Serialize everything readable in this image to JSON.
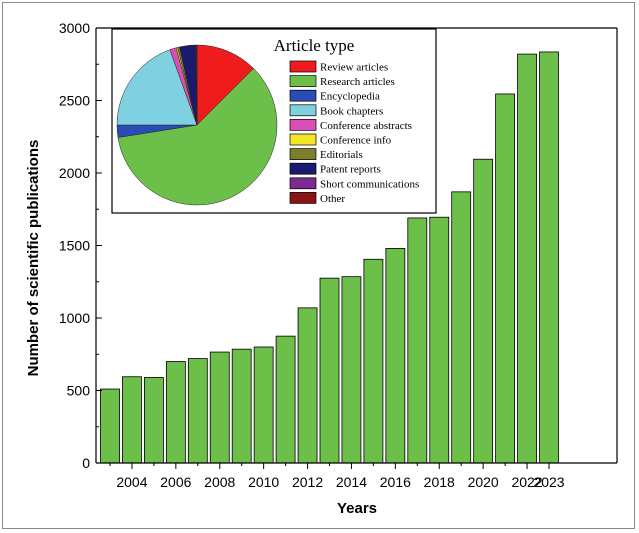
{
  "chart_data": {
    "type": "bar",
    "categories": [
      "2003",
      "2004",
      "2005",
      "2006",
      "2007",
      "2008",
      "2009",
      "2010",
      "2011",
      "2012",
      "2013",
      "2014",
      "2015",
      "2016",
      "2017",
      "2018",
      "2019",
      "2020",
      "2021",
      "2022",
      "2023"
    ],
    "values": [
      510,
      595,
      590,
      700,
      720,
      765,
      785,
      800,
      875,
      1070,
      1275,
      1285,
      1405,
      1480,
      1690,
      1695,
      1870,
      2095,
      2545,
      2820,
      2835
    ],
    "x_tick_labels": [
      "2004",
      "2006",
      "2008",
      "2010",
      "2012",
      "2014",
      "2016",
      "2018",
      "2020",
      "2022",
      "2023"
    ],
    "y_ticks": [
      0,
      500,
      1000,
      1500,
      2000,
      2500,
      3000
    ],
    "xlabel": "Years",
    "ylabel": "Number of scientific publications",
    "ylim": [
      0,
      3000
    ],
    "bar_color": "#6cc04a",
    "grid": false,
    "inset_pie": {
      "type": "pie",
      "legend_title": "Article type",
      "legend_placement": "right",
      "slices": [
        {
          "name": "Review articles",
          "value": 12.5,
          "color": "#ee1c1c"
        },
        {
          "name": "Research articles",
          "value": 60.0,
          "color": "#6cc04a"
        },
        {
          "name": "Encyclopedia",
          "value": 2.5,
          "color": "#2a4db5"
        },
        {
          "name": "Book chapters",
          "value": 19.5,
          "color": "#7fd0e0"
        },
        {
          "name": "Conference abstracts",
          "value": 1.3,
          "color": "#d94fb5"
        },
        {
          "name": "Conference info",
          "value": 0.3,
          "color": "#f2e626"
        },
        {
          "name": "Editorials",
          "value": 0.4,
          "color": "#7e7e2a"
        },
        {
          "name": "Patent reports",
          "value": 3.2,
          "color": "#1a1a6e"
        },
        {
          "name": "Short communications",
          "value": 0.2,
          "color": "#7b2a8f"
        },
        {
          "name": "Other",
          "value": 0.1,
          "color": "#8a1414"
        }
      ]
    }
  }
}
